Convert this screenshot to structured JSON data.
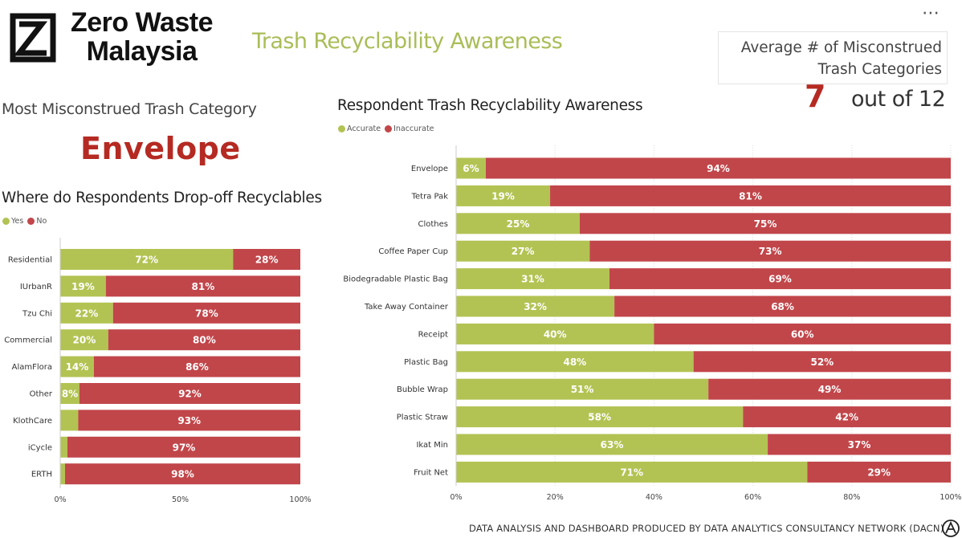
{
  "logo": {
    "line1": "Zero Waste",
    "line2": "Malaysia"
  },
  "page_title": "Trash Recyclability Awareness",
  "more_menu": "⋯",
  "kpi": {
    "label_line1": "Average # of Misconstrued",
    "label_line2": "Trash Categories",
    "value": "7",
    "suffix": "out of 12"
  },
  "most_misconstrued": {
    "title": "Most Misconstrued Trash Category",
    "value": "Envelope"
  },
  "colors": {
    "yes": "#b3c353",
    "no": "#c1464a",
    "title_green": "#a9bd58",
    "kpi_red": "#b52a22"
  },
  "dropoff": {
    "title": "Where do Respondents Drop-off Recyclables",
    "legend": [
      "Yes",
      "No"
    ]
  },
  "awareness": {
    "title": "Respondent Trash Recyclability Awareness",
    "legend": [
      "Accurate",
      "Inaccurate"
    ]
  },
  "chart_data": [
    {
      "type": "bar",
      "orientation": "horizontal",
      "stacking": "100%",
      "title": "Where do Respondents Drop-off Recyclables",
      "categories": [
        "Residential",
        "IUrbanR",
        "Tzu Chi",
        "Commercial",
        "AlamFlora",
        "Other",
        "KlothCare",
        "iCycle",
        "ERTH"
      ],
      "series": [
        {
          "name": "Yes",
          "values": [
            72,
            19,
            22,
            20,
            14,
            8,
            7.5,
            3,
            2
          ],
          "labels": [
            "72%",
            "19%",
            "22%",
            "20%",
            "14%",
            "8%",
            "",
            "",
            ""
          ]
        },
        {
          "name": "No",
          "values": [
            28,
            81,
            78,
            80,
            86,
            92,
            92.5,
            97,
            98
          ],
          "labels": [
            "28%",
            "81%",
            "78%",
            "80%",
            "86%",
            "92%",
            "93%",
            "97%",
            "98%"
          ]
        }
      ],
      "xticks": [
        "0%",
        "50%",
        "100%"
      ],
      "xlim": [
        0,
        100
      ],
      "legend": "top-left"
    },
    {
      "type": "bar",
      "orientation": "horizontal",
      "stacking": "100%",
      "title": "Respondent Trash Recyclability Awareness",
      "categories": [
        "Envelope",
        "Tetra Pak",
        "Clothes",
        "Coffee Paper Cup",
        "Biodegradable Plastic Bag",
        "Take Away Container",
        "Receipt",
        "Plastic Bag",
        "Bubble Wrap",
        "Plastic Straw",
        "Ikat Min",
        "Fruit Net"
      ],
      "series": [
        {
          "name": "Accurate",
          "values": [
            6,
            19,
            25,
            27,
            31,
            32,
            40,
            48,
            51,
            58,
            63,
            71
          ],
          "labels": [
            "6%",
            "19%",
            "25%",
            "27%",
            "31%",
            "32%",
            "40%",
            "48%",
            "51%",
            "58%",
            "63%",
            "71%"
          ]
        },
        {
          "name": "Inaccurate",
          "values": [
            94,
            81,
            75,
            73,
            69,
            68,
            60,
            52,
            49,
            42,
            37,
            29
          ],
          "labels": [
            "94%",
            "81%",
            "75%",
            "73%",
            "69%",
            "68%",
            "60%",
            "52%",
            "49%",
            "42%",
            "37%",
            "29%"
          ]
        }
      ],
      "xticks": [
        "0%",
        "20%",
        "40%",
        "60%",
        "80%",
        "100%"
      ],
      "xlim": [
        0,
        100
      ],
      "grid": true,
      "legend": "top-left"
    }
  ],
  "footer": "DATA ANALYSIS AND DASHBOARD PRODUCED BY DATA ANALYTICS CONSULTANCY NETWORK (DACN)"
}
